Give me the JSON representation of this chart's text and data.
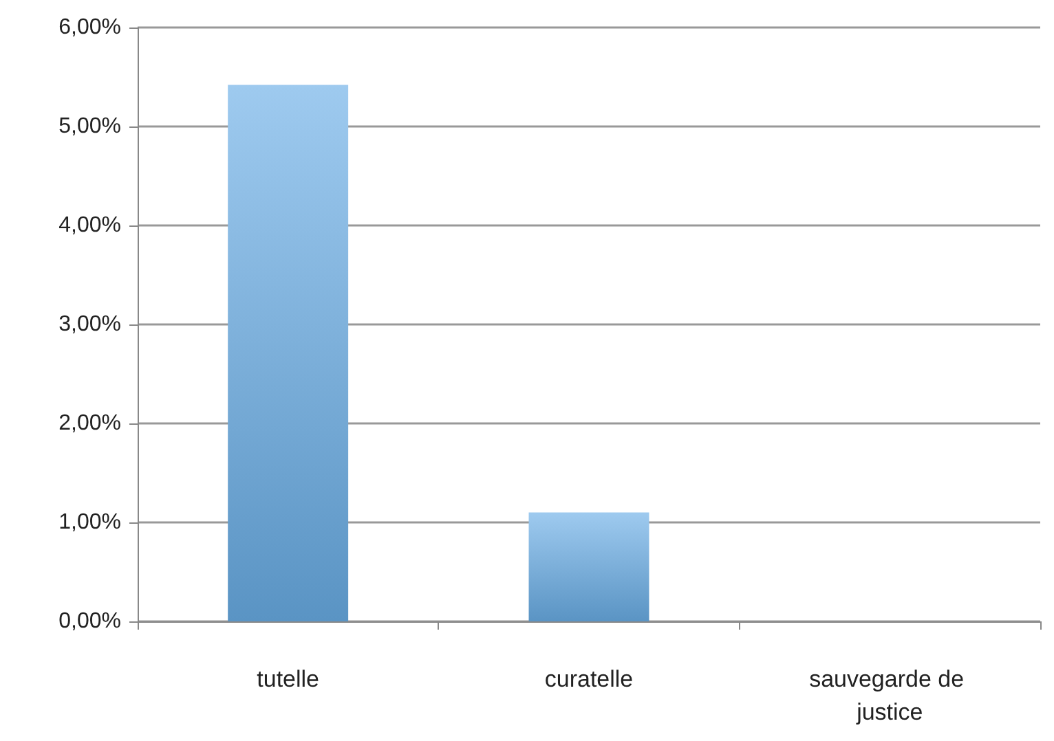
{
  "chart_data": {
    "type": "bar",
    "categories": [
      "tutelle",
      "curatelle",
      "sauvegarde de justice"
    ],
    "values": [
      5.42,
      1.1,
      0
    ],
    "color": "#6aaee6",
    "ylim": [
      0,
      6
    ],
    "yticks": [
      {
        "value": 0,
        "label": "0,00%"
      },
      {
        "value": 1,
        "label": "1,00%"
      },
      {
        "value": 2,
        "label": "2,00%"
      },
      {
        "value": 3,
        "label": "3,00%"
      },
      {
        "value": 4,
        "label": "4,00%"
      },
      {
        "value": 5,
        "label": "5,00%"
      },
      {
        "value": 6,
        "label": "6,00%"
      }
    ],
    "grid": true
  }
}
